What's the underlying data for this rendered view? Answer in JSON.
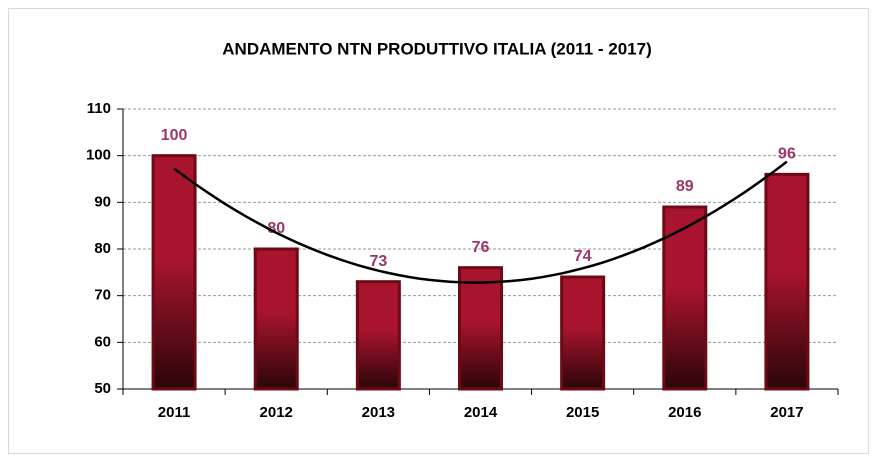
{
  "chart_data": {
    "type": "bar",
    "title": "ANDAMENTO NTN PRODUTTIVO ITALIA  (2011 - 2017)",
    "categories": [
      "2011",
      "2012",
      "2013",
      "2014",
      "2015",
      "2016",
      "2017"
    ],
    "values": [
      100,
      80,
      73,
      76,
      74,
      89,
      96
    ],
    "color": "#a8142e",
    "label_color": "#9b3868",
    "ylim": [
      50,
      110
    ],
    "yticks": [
      50,
      60,
      70,
      80,
      90,
      100,
      110
    ],
    "grid": true,
    "trendline": "polynomial"
  }
}
